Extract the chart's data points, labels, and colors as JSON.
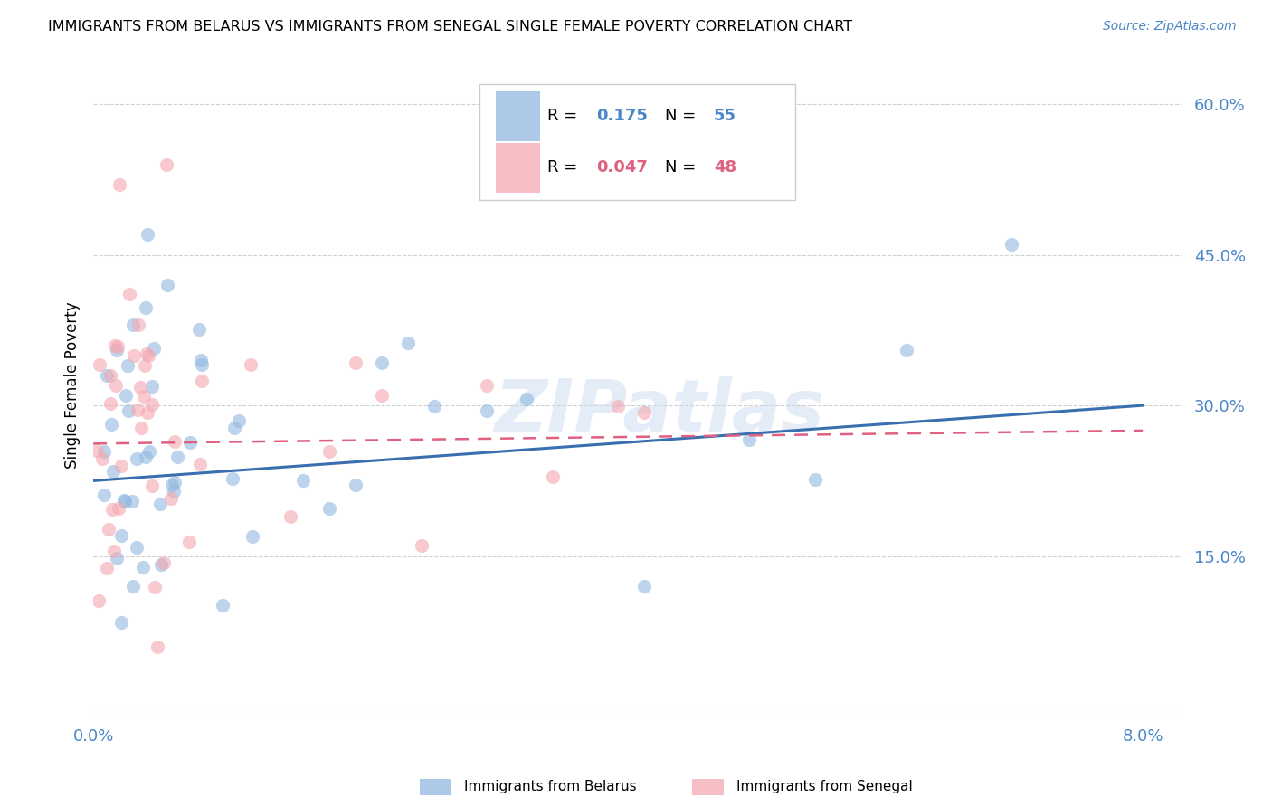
{
  "title": "IMMIGRANTS FROM BELARUS VS IMMIGRANTS FROM SENEGAL SINGLE FEMALE POVERTY CORRELATION CHART",
  "source": "Source: ZipAtlas.com",
  "ylabel": "Single Female Poverty",
  "yticks": [
    0.0,
    0.15,
    0.3,
    0.45,
    0.6
  ],
  "ytick_labels": [
    "",
    "15.0%",
    "30.0%",
    "45.0%",
    "60.0%"
  ],
  "xticks": [
    0.0,
    0.01,
    0.02,
    0.03,
    0.04,
    0.05,
    0.06,
    0.07,
    0.08
  ],
  "xlim": [
    0.0,
    0.083
  ],
  "ylim": [
    -0.01,
    0.65
  ],
  "r_belarus": 0.175,
  "n_belarus": 55,
  "r_senegal": 0.047,
  "n_senegal": 48,
  "legend_label_belarus": "Immigrants from Belarus",
  "legend_label_senegal": "Immigrants from Senegal",
  "color_belarus": "#92b8e0",
  "color_senegal": "#f4a8b0",
  "color_belarus_line": "#3a6faf",
  "color_senegal_line": "#e06080",
  "watermark": "ZIPatlas",
  "bel_line_x0": 0.0,
  "bel_line_y0": 0.225,
  "bel_line_x1": 0.08,
  "bel_line_y1": 0.3,
  "sen_line_x0": 0.0,
  "sen_line_y0": 0.262,
  "sen_line_x1": 0.08,
  "sen_line_y1": 0.275
}
